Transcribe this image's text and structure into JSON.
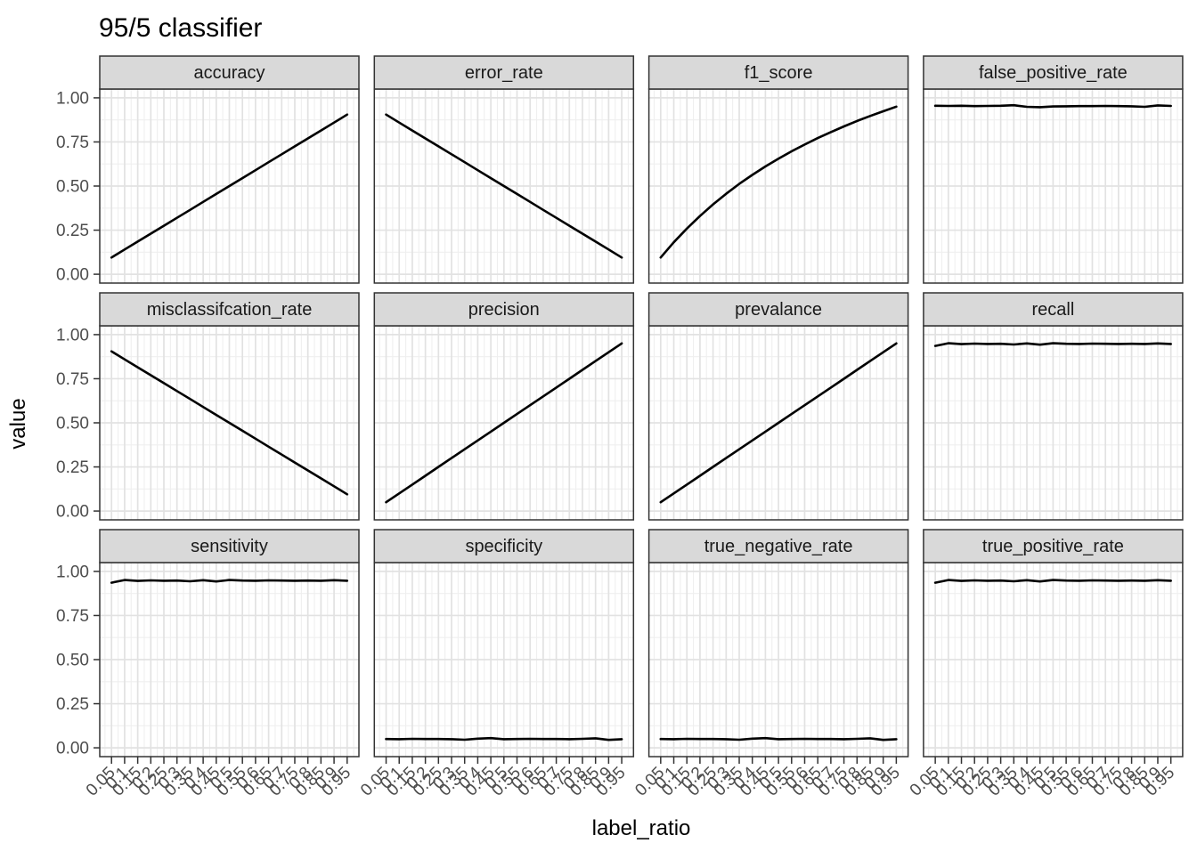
{
  "chart_data": {
    "type": "line",
    "title": "95/5 classifier",
    "xlabel": "label_ratio",
    "ylabel": "value",
    "ylim": [
      0,
      1
    ],
    "legend": "none",
    "grid": "major+minor",
    "layout": {
      "rows": 3,
      "cols": 4
    },
    "x": [
      0.05,
      0.1,
      0.15,
      0.2,
      0.25,
      0.3,
      0.35,
      0.4,
      0.45,
      0.5,
      0.55,
      0.6,
      0.65,
      0.7,
      0.75,
      0.8,
      0.85,
      0.9,
      0.95
    ],
    "x_tick_labels": [
      "0.05",
      "0.1",
      "0.15",
      "0.2",
      "0.25",
      "0.3",
      "0.35",
      "0.4",
      "0.45",
      "0.5",
      "0.55",
      "0.6",
      "0.65",
      "0.7",
      "0.75",
      "0.8",
      "0.85",
      "0.9",
      "0.95"
    ],
    "y_ticks": [
      0,
      0.25,
      0.5,
      0.75,
      1
    ],
    "y_tick_labels": [
      "0.00",
      "0.25",
      "0.50",
      "0.75",
      "1.00"
    ],
    "y_minor_ticks": [
      0.125,
      0.375,
      0.625,
      0.875
    ],
    "facets": [
      {
        "label": "accuracy",
        "values": [
          0.095,
          0.14,
          0.185,
          0.23,
          0.275,
          0.32,
          0.365,
          0.41,
          0.455,
          0.5,
          0.545,
          0.59,
          0.635,
          0.68,
          0.725,
          0.77,
          0.815,
          0.86,
          0.905
        ]
      },
      {
        "label": "error_rate",
        "values": [
          0.905,
          0.86,
          0.815,
          0.77,
          0.725,
          0.68,
          0.635,
          0.59,
          0.545,
          0.5,
          0.455,
          0.41,
          0.365,
          0.32,
          0.275,
          0.23,
          0.185,
          0.14,
          0.095
        ]
      },
      {
        "label": "f1_score",
        "values": [
          0.095,
          0.181,
          0.259,
          0.33,
          0.396,
          0.456,
          0.512,
          0.563,
          0.611,
          0.655,
          0.697,
          0.735,
          0.772,
          0.806,
          0.838,
          0.869,
          0.897,
          0.924,
          0.95
        ]
      },
      {
        "label": "false_positive_rate",
        "values": [
          0.955,
          0.954,
          0.955,
          0.953,
          0.954,
          0.955,
          0.958,
          0.949,
          0.947,
          0.951,
          0.952,
          0.953,
          0.953,
          0.954,
          0.953,
          0.952,
          0.949,
          0.957,
          0.954
        ]
      },
      {
        "label": "misclassifcation_rate",
        "values": [
          0.905,
          0.86,
          0.815,
          0.77,
          0.725,
          0.68,
          0.635,
          0.59,
          0.545,
          0.5,
          0.455,
          0.41,
          0.365,
          0.32,
          0.275,
          0.23,
          0.185,
          0.14,
          0.095
        ]
      },
      {
        "label": "precision",
        "values": [
          0.05,
          0.1,
          0.15,
          0.2,
          0.25,
          0.3,
          0.35,
          0.4,
          0.45,
          0.5,
          0.55,
          0.6,
          0.65,
          0.7,
          0.75,
          0.8,
          0.85,
          0.9,
          0.95
        ]
      },
      {
        "label": "prevalance",
        "values": [
          0.05,
          0.1,
          0.15,
          0.2,
          0.25,
          0.3,
          0.35,
          0.4,
          0.45,
          0.5,
          0.55,
          0.6,
          0.65,
          0.7,
          0.75,
          0.8,
          0.85,
          0.9,
          0.95
        ]
      },
      {
        "label": "recall",
        "values": [
          0.936,
          0.951,
          0.946,
          0.949,
          0.947,
          0.948,
          0.944,
          0.95,
          0.943,
          0.951,
          0.948,
          0.947,
          0.949,
          0.948,
          0.947,
          0.948,
          0.947,
          0.95,
          0.947
        ]
      },
      {
        "label": "sensitivity",
        "values": [
          0.936,
          0.951,
          0.946,
          0.949,
          0.947,
          0.948,
          0.944,
          0.95,
          0.943,
          0.951,
          0.948,
          0.947,
          0.949,
          0.948,
          0.947,
          0.948,
          0.947,
          0.95,
          0.947
        ]
      },
      {
        "label": "specificity",
        "values": [
          0.05,
          0.049,
          0.051,
          0.05,
          0.05,
          0.049,
          0.046,
          0.052,
          0.055,
          0.049,
          0.05,
          0.051,
          0.05,
          0.05,
          0.049,
          0.051,
          0.054,
          0.045,
          0.049
        ]
      },
      {
        "label": "true_negative_rate",
        "values": [
          0.05,
          0.049,
          0.051,
          0.05,
          0.05,
          0.049,
          0.046,
          0.052,
          0.055,
          0.049,
          0.05,
          0.051,
          0.05,
          0.05,
          0.049,
          0.051,
          0.054,
          0.045,
          0.049
        ]
      },
      {
        "label": "true_positive_rate",
        "values": [
          0.936,
          0.951,
          0.946,
          0.949,
          0.947,
          0.948,
          0.944,
          0.95,
          0.943,
          0.951,
          0.948,
          0.947,
          0.949,
          0.948,
          0.947,
          0.948,
          0.947,
          0.95,
          0.947
        ]
      }
    ],
    "colors": {
      "line": "#000000",
      "strip_fill": "#d9d9d9",
      "border": "#333333",
      "grid_major": "#e2e2e2",
      "grid_minor": "#efefef",
      "tick_mark": "#333333",
      "tick_label": "#4d4d4d",
      "background": "#ffffff"
    }
  }
}
